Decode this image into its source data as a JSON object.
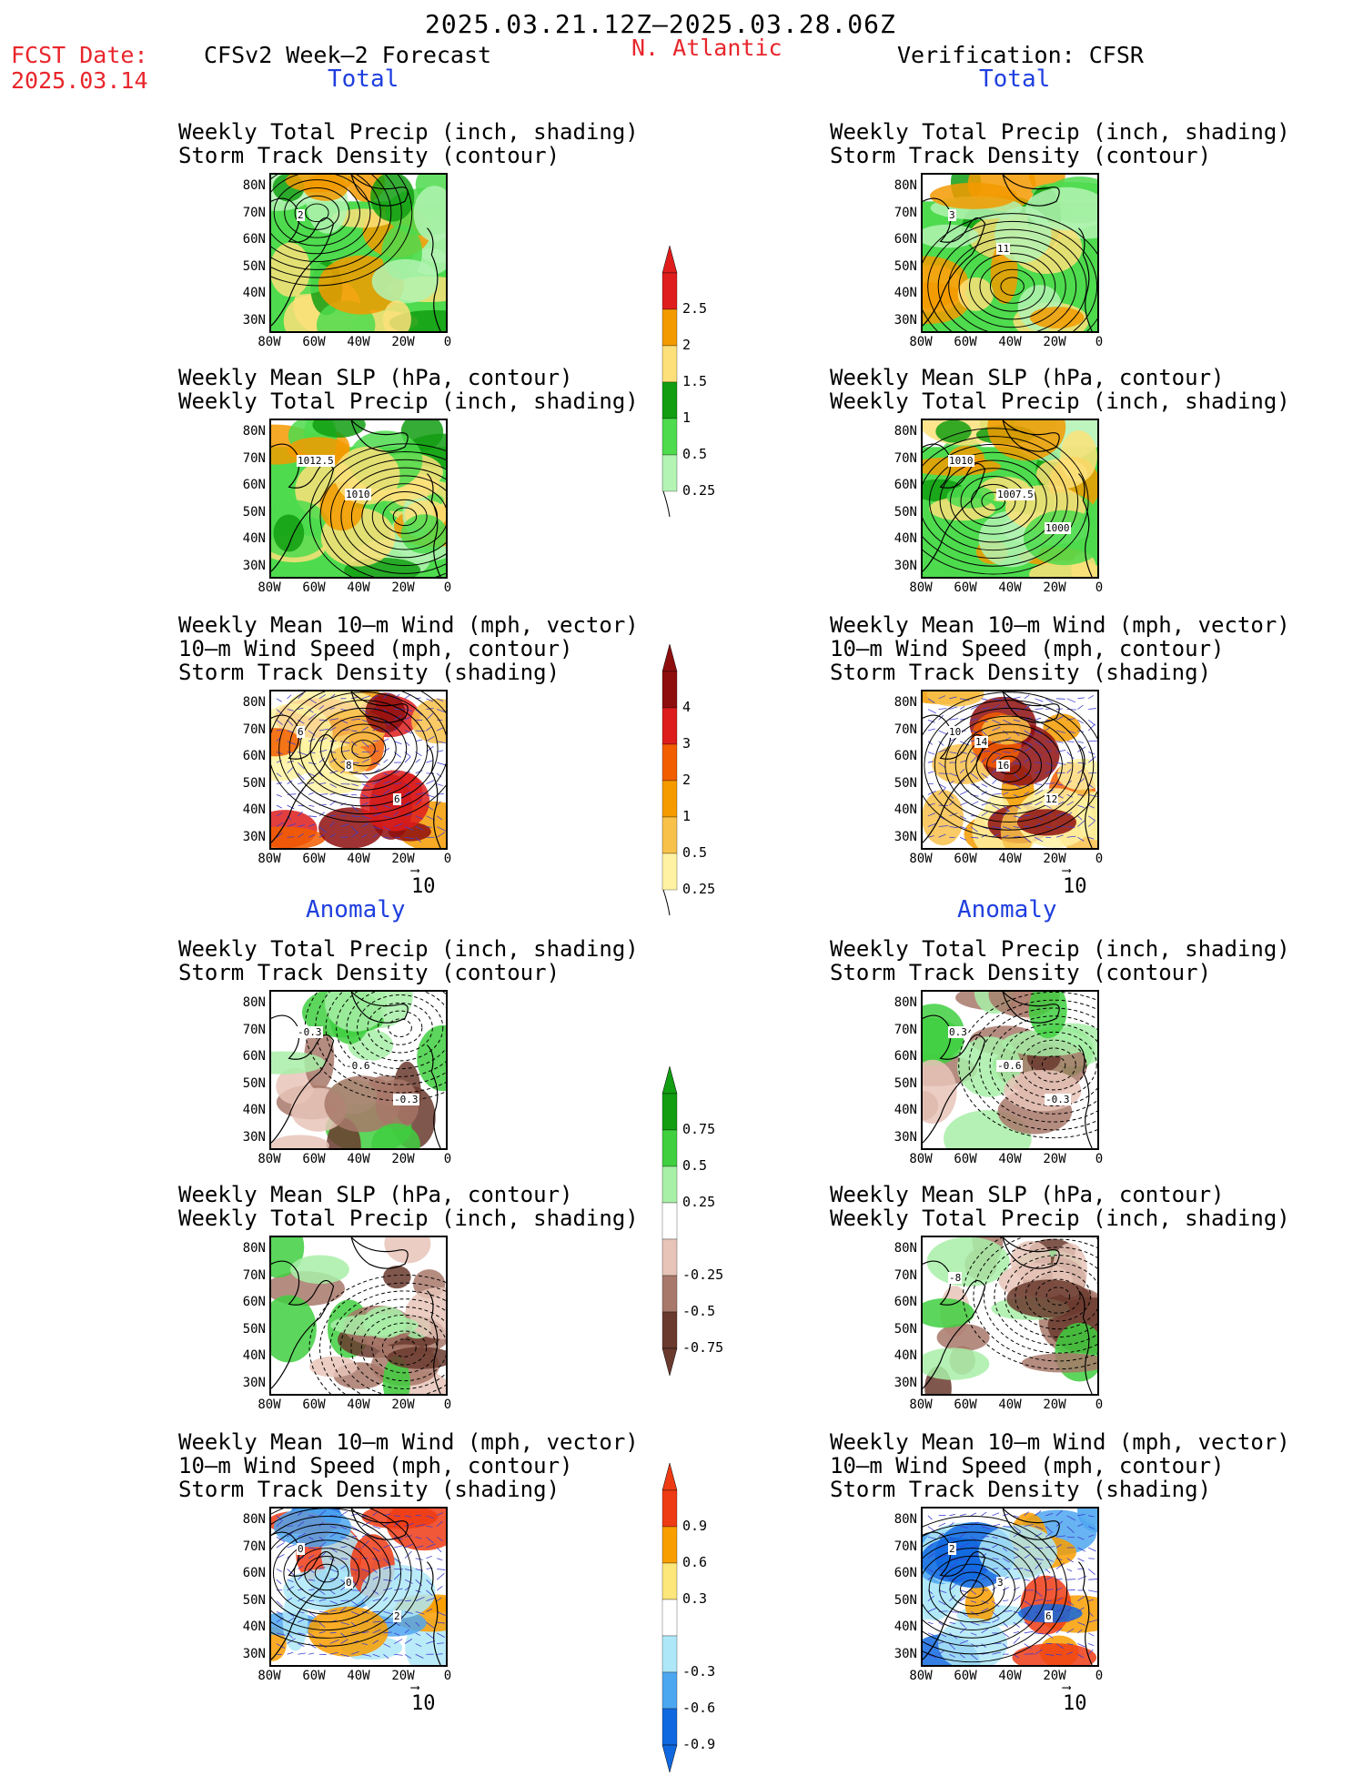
{
  "header": {
    "period": "2025.03.21.12Z–2025.03.28.06Z",
    "fcst_label": "FCST Date:",
    "fcst_date": "2025.03.14",
    "left_title": "CFSv2 Week–2 Forecast",
    "region": "N. Atlantic",
    "right_title": "Verification: CFSR"
  },
  "sections": {
    "total": "Total",
    "anomaly": "Anomaly"
  },
  "panel_titles": {
    "precip_storm": "Weekly Total Precip (inch, shading)\nStorm Track Density (contour)",
    "slp_precip": "Weekly Mean SLP (hPa, contour)\nWeekly Total Precip (inch, shading)",
    "wind_storm": "Weekly Mean 10–m Wind (mph, vector)\n10–m Wind Speed (mph, contour)\nStorm Track Density (shading)"
  },
  "axes": {
    "lat": [
      "80N",
      "70N",
      "60N",
      "50N",
      "40N",
      "30N"
    ],
    "lon": [
      "80W",
      "60W",
      "40W",
      "20W",
      "0"
    ]
  },
  "vector_ref": "10",
  "contour_labels": {
    "fc_precip_total": [
      "2"
    ],
    "vf_precip_total": [
      "3",
      "11"
    ],
    "fc_slp_total": [
      "1012.5",
      "1010"
    ],
    "vf_slp_total": [
      "1010",
      "1007.5",
      "1000"
    ],
    "fc_wind_total": [
      "6",
      "8",
      "6"
    ],
    "vf_wind_total": [
      "10",
      "16",
      "12",
      "14"
    ],
    "fc_precip_anom": [
      "-0.3",
      "-0.6",
      "-0.3"
    ],
    "vf_precip_anom": [
      "0.3",
      "-0.6",
      "-0.3"
    ],
    "vf_slp_anom": [
      "-8"
    ],
    "fc_wind_anom": [
      "0",
      "0",
      "2"
    ],
    "vf_wind_anom": [
      "2",
      "3",
      "6"
    ]
  },
  "colorbars": {
    "precip_total": {
      "labels": [
        "2.5",
        "2",
        "1.5",
        "1",
        "0.5",
        "0.25"
      ],
      "colors": [
        "#e01d1d",
        "#f39a00",
        "#fde07a",
        "#129d12",
        "#4edb4e",
        "#b3f3b3"
      ]
    },
    "storm_total": {
      "labels": [
        "4",
        "3",
        "2",
        "1",
        "0.5",
        "0.25"
      ],
      "colors": [
        "#8e0e0e",
        "#dd1c1c",
        "#f25d00",
        "#f59b00",
        "#f8c14a",
        "#fff2a2"
      ]
    },
    "precip_anom": {
      "labels": [
        "0.75",
        "0.5",
        "0.25",
        "-0.25",
        "-0.5",
        "-0.75"
      ],
      "colors": [
        "#129d12",
        "#3fcf3f",
        "#a8efa8",
        "#ffffff",
        "#e8c4b8",
        "#a8786a",
        "#6a3a2e"
      ]
    },
    "storm_anom": {
      "labels": [
        "0.9",
        "0.6",
        "0.3",
        "-0.3",
        "-0.6",
        "-0.9"
      ],
      "colors": [
        "#ee3b14",
        "#f99e00",
        "#fde67a",
        "#ffffff",
        "#aee8f8",
        "#4da6f0",
        "#1068e0"
      ]
    }
  }
}
